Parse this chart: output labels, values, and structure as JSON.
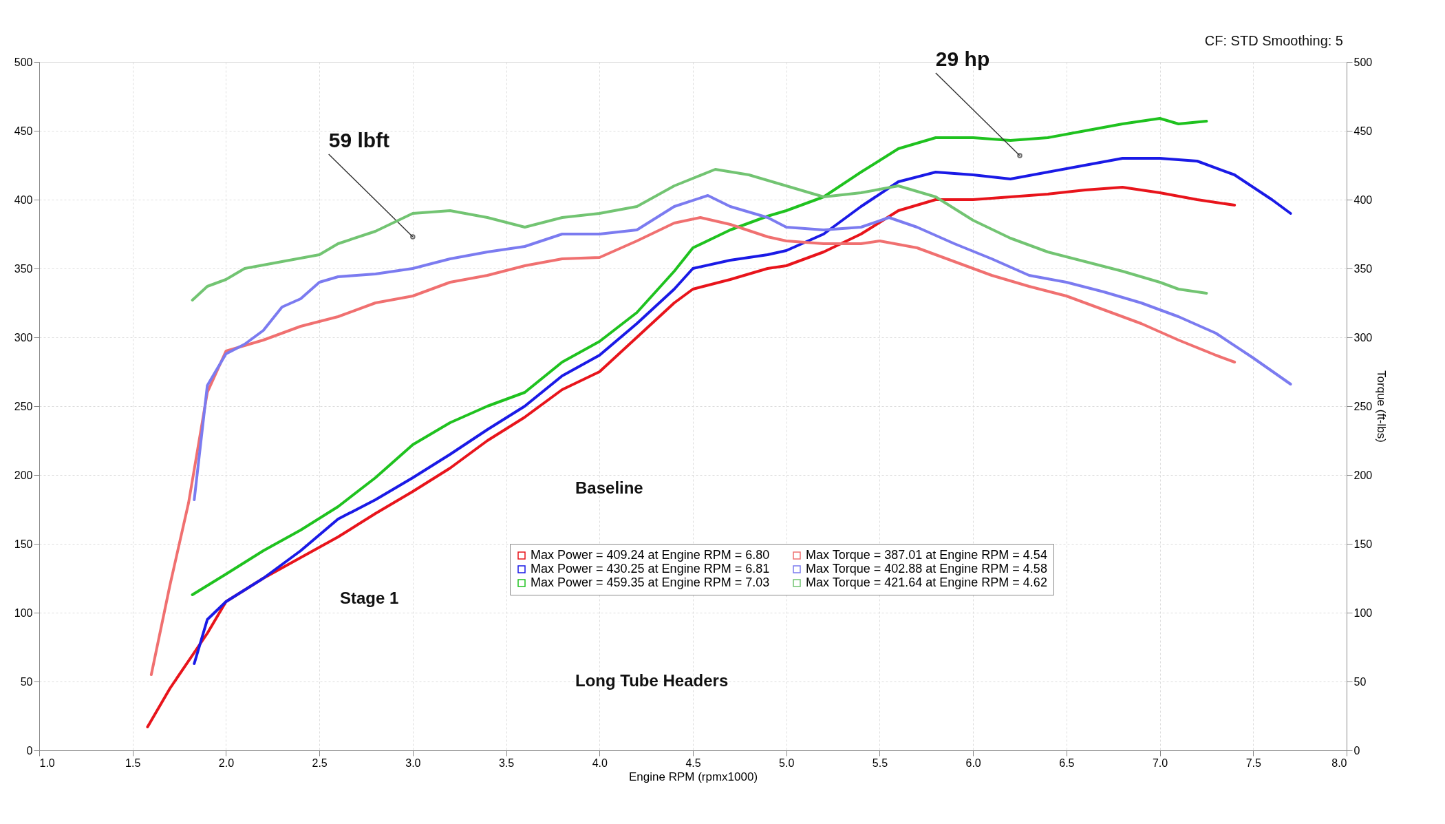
{
  "chart_data": {
    "type": "line",
    "xlabel": "Engine RPM (rpmx1000)",
    "y2label": "Torque (ft-lbs)",
    "xlim": [
      1.0,
      8.0
    ],
    "xticks": [
      {
        "value": 1.0,
        "label": "1.0"
      },
      1.5,
      {
        "value": 2.0,
        "label": "2.0"
      },
      2.5,
      {
        "value": 3.0,
        "label": "3.0"
      },
      3.5,
      {
        "value": 4.0,
        "label": "4.0"
      },
      4.5,
      {
        "value": 5.0,
        "label": "5.0"
      },
      5.5,
      {
        "value": 6.0,
        "label": "6.0"
      },
      6.5,
      {
        "value": 7.0,
        "label": "7.0"
      },
      7.5,
      {
        "value": 8.0,
        "label": "8.0"
      }
    ],
    "ylim": [
      0,
      500
    ],
    "yticks": [
      0,
      50,
      100,
      150,
      200,
      250,
      300,
      350,
      400,
      450,
      500
    ],
    "y2lim": [
      0,
      500
    ],
    "y2ticks": [
      0,
      50,
      100,
      150,
      200,
      250,
      300,
      350,
      400,
      450,
      500
    ],
    "grid": true,
    "legend": "bottom",
    "marker": "none",
    "line_style": "solid",
    "series": [
      {
        "name": "Max Power = 409.24 at Engine RPM = 6.80",
        "color": "#e8141b",
        "x": [
          1.58,
          1.7,
          1.9,
          2.0,
          2.2,
          2.4,
          2.6,
          2.8,
          3.0,
          3.2,
          3.4,
          3.6,
          3.8,
          4.0,
          4.2,
          4.4,
          4.5,
          4.7,
          4.9,
          5.0,
          5.2,
          5.4,
          5.6,
          5.8,
          6.0,
          6.2,
          6.4,
          6.6,
          6.8,
          7.0,
          7.2,
          7.4
        ],
        "values": [
          17,
          45,
          85,
          108,
          125,
          140,
          155,
          172,
          188,
          205,
          225,
          242,
          262,
          275,
          300,
          325,
          335,
          342,
          350,
          352,
          362,
          375,
          392,
          400,
          400,
          402,
          404,
          407,
          409,
          405,
          400,
          396
        ]
      },
      {
        "name": "Max Power = 430.25 at Engine RPM = 6.81",
        "color": "#1a1ae6",
        "x": [
          1.83,
          1.9,
          2.0,
          2.2,
          2.4,
          2.6,
          2.8,
          3.0,
          3.2,
          3.4,
          3.6,
          3.8,
          4.0,
          4.2,
          4.4,
          4.5,
          4.7,
          4.9,
          5.0,
          5.2,
          5.4,
          5.6,
          5.8,
          6.0,
          6.2,
          6.4,
          6.6,
          6.8,
          7.0,
          7.2,
          7.4,
          7.6,
          7.7
        ],
        "values": [
          63,
          95,
          108,
          125,
          145,
          168,
          182,
          198,
          215,
          233,
          250,
          272,
          287,
          310,
          335,
          350,
          356,
          360,
          363,
          375,
          395,
          413,
          420,
          418,
          415,
          420,
          425,
          430,
          430,
          428,
          418,
          400,
          390
        ]
      },
      {
        "name": "Max Power = 459.35 at Engine RPM = 7.03",
        "color": "#1fc21f",
        "x": [
          1.82,
          2.0,
          2.2,
          2.4,
          2.6,
          2.8,
          3.0,
          3.2,
          3.4,
          3.6,
          3.8,
          4.0,
          4.2,
          4.4,
          4.5,
          4.7,
          4.9,
          5.0,
          5.2,
          5.4,
          5.6,
          5.8,
          6.0,
          6.2,
          6.4,
          6.6,
          6.8,
          7.0,
          7.1,
          7.25
        ],
        "values": [
          113,
          128,
          145,
          160,
          177,
          198,
          222,
          238,
          250,
          260,
          282,
          297,
          318,
          348,
          365,
          378,
          388,
          392,
          402,
          420,
          437,
          445,
          445,
          443,
          445,
          450,
          455,
          459,
          455,
          457
        ]
      },
      {
        "name": "Max Torque = 387.01 at Engine RPM = 4.54",
        "color": "#f07070",
        "axis": "y2",
        "x": [
          1.6,
          1.7,
          1.8,
          1.9,
          2.0,
          2.2,
          2.4,
          2.6,
          2.8,
          3.0,
          3.2,
          3.4,
          3.6,
          3.8,
          4.0,
          4.2,
          4.4,
          4.54,
          4.7,
          4.9,
          5.0,
          5.2,
          5.4,
          5.5,
          5.7,
          5.9,
          6.1,
          6.3,
          6.5,
          6.7,
          6.9,
          7.1,
          7.3,
          7.4
        ],
        "values": [
          55,
          120,
          180,
          260,
          290,
          298,
          308,
          315,
          325,
          330,
          340,
          345,
          352,
          357,
          358,
          370,
          383,
          387,
          382,
          373,
          370,
          368,
          368,
          370,
          365,
          355,
          345,
          337,
          330,
          320,
          310,
          298,
          287,
          282
        ]
      },
      {
        "name": "Max Torque = 402.88 at Engine RPM = 4.58",
        "color": "#7b7bf0",
        "axis": "y2",
        "x": [
          1.83,
          1.9,
          2.0,
          2.1,
          2.2,
          2.3,
          2.4,
          2.5,
          2.6,
          2.8,
          3.0,
          3.2,
          3.4,
          3.6,
          3.8,
          4.0,
          4.2,
          4.4,
          4.58,
          4.7,
          4.9,
          5.0,
          5.2,
          5.4,
          5.55,
          5.7,
          5.9,
          6.1,
          6.3,
          6.5,
          6.7,
          6.9,
          7.1,
          7.3,
          7.5,
          7.7
        ],
        "values": [
          182,
          265,
          288,
          295,
          305,
          322,
          328,
          340,
          344,
          346,
          350,
          357,
          362,
          366,
          375,
          375,
          378,
          395,
          403,
          395,
          387,
          380,
          378,
          380,
          387,
          380,
          368,
          357,
          345,
          340,
          333,
          325,
          315,
          303,
          285,
          266
        ]
      },
      {
        "name": "Max Torque = 421.64 at Engine RPM = 4.62",
        "color": "#72c472",
        "axis": "y2",
        "x": [
          1.82,
          1.9,
          2.0,
          2.1,
          2.3,
          2.5,
          2.6,
          2.8,
          3.0,
          3.2,
          3.4,
          3.6,
          3.8,
          4.0,
          4.2,
          4.4,
          4.62,
          4.8,
          5.0,
          5.2,
          5.4,
          5.6,
          5.8,
          6.0,
          6.2,
          6.4,
          6.6,
          6.8,
          7.0,
          7.1,
          7.25
        ],
        "values": [
          327,
          337,
          342,
          350,
          355,
          360,
          368,
          377,
          390,
          392,
          387,
          380,
          387,
          390,
          395,
          410,
          422,
          418,
          410,
          402,
          405,
          410,
          402,
          385,
          372,
          362,
          355,
          348,
          340,
          335,
          332
        ]
      }
    ],
    "annotations": [
      "CF: STD Smoothing: 5",
      {
        "text": "59 lbft",
        "x": 3.0,
        "y": 373
      },
      {
        "text": "29 hp",
        "x": 6.25,
        "y": 432
      },
      "Baseline",
      "Stage 1",
      "Long Tube Headers"
    ]
  }
}
